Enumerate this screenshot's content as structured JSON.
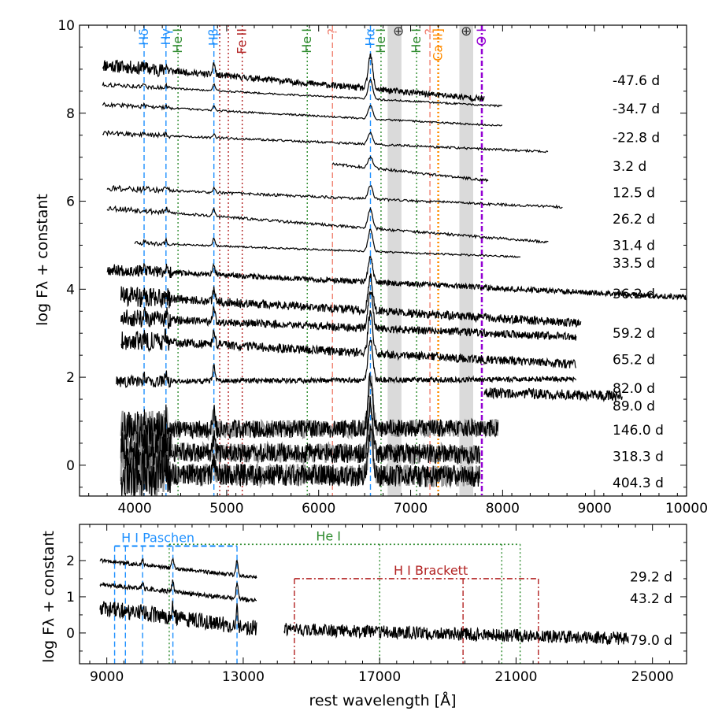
{
  "colors": {
    "halpha": "#1e90ff",
    "hei": "#2e8b2e",
    "feii": "#b22222",
    "unknown": "#f08070",
    "caii": "#ff8c00",
    "oi": "#9400d3",
    "telluric": "#d3d3d3",
    "spectrum": "#000000",
    "error": "#808080"
  },
  "chart_data": [
    {
      "type": "line",
      "title": "",
      "xlabel": "",
      "ylabel": "log Fλ + constant",
      "xlim": [
        3400,
        10000
      ],
      "ylim": [
        -0.7,
        10
      ],
      "xticks": [
        "4000",
        "5000",
        "6000",
        "7000",
        "8000",
        "9000",
        "10000"
      ],
      "yticks": [
        "0",
        "2",
        "4",
        "6",
        "8",
        "10"
      ],
      "xtick_values": [
        4000,
        5000,
        6000,
        7000,
        8000,
        9000,
        10000
      ],
      "ytick_values": [
        0,
        2,
        4,
        6,
        8,
        10
      ],
      "telluric_bands": [
        [
          6750,
          6900
        ],
        [
          7530,
          7680
        ]
      ],
      "telluric_symbols": [
        {
          "x": 6868,
          "label": "⊕"
        },
        {
          "x": 7605,
          "label": "⊕"
        }
      ],
      "line_ids": [
        {
          "label": "Hδ",
          "x": 4102,
          "style": "dashed",
          "color_key": "halpha"
        },
        {
          "label": "Hγ",
          "x": 4340,
          "style": "dashed",
          "color_key": "halpha"
        },
        {
          "label": "He I",
          "x": 4471,
          "style": "dotted",
          "color_key": "hei"
        },
        {
          "label": "Hβ",
          "x": 4861,
          "style": "dashed",
          "color_key": "halpha"
        },
        {
          "label": "",
          "x": 4924,
          "style": "dotted",
          "color_key": "feii"
        },
        {
          "label": "",
          "x": 5018,
          "style": "dotted",
          "color_key": "feii"
        },
        {
          "label": "Fe II",
          "x": 5169,
          "style": "dotted",
          "color_key": "feii"
        },
        {
          "label": "He I",
          "x": 5876,
          "style": "dotted",
          "color_key": "hei"
        },
        {
          "label": "?",
          "x": 6150,
          "style": "dashed",
          "color_key": "unknown"
        },
        {
          "label": "Hα",
          "x": 6563,
          "style": "dashed",
          "color_key": "halpha"
        },
        {
          "label": "He I",
          "x": 6678,
          "style": "dotted",
          "color_key": "hei"
        },
        {
          "label": "He I",
          "x": 7065,
          "style": "dotted",
          "color_key": "hei"
        },
        {
          "label": "?",
          "x": 7210,
          "style": "dashed",
          "color_key": "unknown"
        },
        {
          "label": "Ca II]",
          "x": 7300,
          "style": "dotted",
          "color_key": "caii"
        },
        {
          "label": "O I",
          "x": 7774,
          "style": "dashdot",
          "color_key": "oi"
        }
      ],
      "series": [
        {
          "name": "-47.6 d",
          "offset": 9.1,
          "xmin": 3650,
          "xmax": 7800,
          "slope": -0.75,
          "noise": 0.07,
          "ha": 0.75,
          "err": false
        },
        {
          "name": "-34.7 d",
          "offset": 8.65,
          "xmin": 3650,
          "xmax": 8000,
          "slope": -0.45,
          "noise": 0.02,
          "ha": 0.45,
          "err": false
        },
        {
          "name": "-22.8 d",
          "offset": 8.2,
          "xmin": 3650,
          "xmax": 8000,
          "slope": -0.45,
          "noise": 0.02,
          "ha": 0.3,
          "err": false
        },
        {
          "name": "-22.8 d b",
          "offset": 7.55,
          "xmin": 3650,
          "xmax": 8500,
          "slope": -0.35,
          "noise": 0.025,
          "ha": 0.25,
          "err": false
        },
        {
          "name": "3.2 d",
          "offset": 6.85,
          "xmin": 6150,
          "xmax": 7850,
          "slope": -0.9,
          "noise": 0.03,
          "ha": 0.25,
          "err": false
        },
        {
          "name": "12.5 d",
          "offset": 6.3,
          "xmin": 3700,
          "xmax": 8650,
          "slope": -0.35,
          "noise": 0.03,
          "ha": 0.3,
          "err": false
        },
        {
          "name": "26.2 d",
          "offset": 5.85,
          "xmin": 3700,
          "xmax": 8500,
          "slope": -0.65,
          "noise": 0.03,
          "ha": 0.45,
          "err": false
        },
        {
          "name": "31.4 d",
          "offset": 5.05,
          "xmin": 4000,
          "xmax": 8200,
          "slope": -0.3,
          "noise": 0.02,
          "ha": 0.5,
          "err": false
        },
        {
          "name": "33.5 d",
          "offset": 4.45,
          "xmin": 3700,
          "xmax": 10000,
          "slope": -0.4,
          "noise": 0.06,
          "ha": 0.55,
          "err": false
        },
        {
          "name": "36.2 d",
          "offset": 3.85,
          "xmin": 3850,
          "xmax": 8850,
          "slope": -0.5,
          "noise": 0.1,
          "ha": 0.75,
          "err": false
        },
        {
          "name": "59.2 d",
          "offset": 3.35,
          "xmin": 3850,
          "xmax": 8800,
          "slope": -0.35,
          "noise": 0.09,
          "ha": 0.85,
          "err": false
        },
        {
          "name": "65.2 d",
          "offset": 2.85,
          "xmin": 3850,
          "xmax": 8800,
          "slope": -0.45,
          "noise": 0.1,
          "ha": 0.95,
          "err": false
        },
        {
          "name": "82.0 d",
          "offset": 1.9,
          "xmin": 3800,
          "xmax": 8800,
          "slope": 0.05,
          "noise": 0.06,
          "ha": 0.95,
          "err": false
        },
        {
          "name": "89.0 d",
          "offset": 1.65,
          "xmin": 7800,
          "xmax": 9300,
          "slope": -0.2,
          "noise": 0.12,
          "ha": 0,
          "err": false
        },
        {
          "name": "146.0 d",
          "offset": 0.8,
          "xmin": 3850,
          "xmax": 7950,
          "slope": 0.05,
          "noise": 0.2,
          "ha": 1.15,
          "err": true
        },
        {
          "name": "318.3 d",
          "offset": 0.3,
          "xmin": 3850,
          "xmax": 7750,
          "slope": -0.05,
          "noise": 0.22,
          "ha": 1.1,
          "err": true
        },
        {
          "name": "404.3 d",
          "offset": -0.2,
          "xmin": 3850,
          "xmax": 7750,
          "slope": -0.05,
          "noise": 0.25,
          "ha": 1.0,
          "err": true
        }
      ],
      "epoch_labels": [
        {
          "text": "-47.6 d",
          "y": 8.75
        },
        {
          "text": "-34.7 d",
          "y": 8.1
        },
        {
          "text": "-22.8 d",
          "y": 7.45
        },
        {
          "text": " 3.2 d",
          "y": 6.8
        },
        {
          "text": "12.5 d",
          "y": 6.2
        },
        {
          "text": "26.2 d",
          "y": 5.6
        },
        {
          "text": "31.4 d",
          "y": 5.0
        },
        {
          "text": "33.5 d",
          "y": 4.6
        },
        {
          "text": "36.2 d",
          "y": 3.9
        },
        {
          "text": "59.2 d",
          "y": 3.0
        },
        {
          "text": "65.2 d",
          "y": 2.4
        },
        {
          "text": "82.0 d",
          "y": 1.75
        },
        {
          "text": "89.0 d",
          "y": 1.35
        },
        {
          "text": "146.0 d",
          "y": 0.8
        },
        {
          "text": "318.3 d",
          "y": 0.2
        },
        {
          "text": "404.3 d",
          "y": -0.4
        }
      ]
    },
    {
      "type": "line",
      "title": "",
      "xlabel": "rest wavelength [Å]",
      "ylabel": "log Fλ + constant",
      "xlim": [
        8200,
        26000
      ],
      "ylim": [
        -0.85,
        3.0
      ],
      "xticks": [
        "9000",
        "13000",
        "17000",
        "21000",
        "25000"
      ],
      "yticks": [
        "0",
        "1",
        "2"
      ],
      "xtick_values": [
        9000,
        13000,
        17000,
        21000,
        25000
      ],
      "ytick_values": [
        0,
        1,
        2
      ],
      "brackets": [
        {
          "label": "H I Paschen",
          "color_key": "halpha",
          "style": "dashed",
          "y": 2.4,
          "label_x": 10500,
          "lines": [
            9229,
            9546,
            10049,
            10938,
            12818
          ],
          "drop_to": -0.85
        },
        {
          "label": "He I",
          "color_key": "hei",
          "style": "dotted",
          "y": 2.45,
          "label_x": 15500,
          "lines": [
            10830,
            17002,
            20581,
            21120
          ],
          "drop_to": -0.85
        },
        {
          "label": "H I Brackett",
          "color_key": "feii",
          "style": "dashdot",
          "y": 1.5,
          "label_x": 18500,
          "lines": [
            14500,
            19446,
            21655
          ],
          "drop_to": -0.85
        }
      ],
      "series": [
        {
          "name": "29.2 d",
          "offset": 2.0,
          "xmin": 8800,
          "xmax": 13400,
          "slope": -0.4,
          "noise": 0.05,
          "err": false
        },
        {
          "name": "43.2 d",
          "offset": 1.35,
          "xmin": 8800,
          "xmax": 13400,
          "slope": -0.4,
          "noise": 0.06,
          "err": false
        },
        {
          "name": "79.0 d",
          "offset": 0.7,
          "xmin": 8800,
          "xmax": 13400,
          "slope": -0.5,
          "noise": 0.22,
          "err": false
        },
        {
          "name": "79.0 d ir",
          "offset": 0.1,
          "xmin": 14200,
          "xmax": 24300,
          "slope": -0.1,
          "noise": 0.18,
          "err": false
        }
      ],
      "epoch_labels": [
        {
          "text": "29.2 d",
          "y": 1.55
        },
        {
          "text": "43.2 d",
          "y": 0.95
        },
        {
          "text": "79.0 d",
          "y": -0.2
        }
      ]
    }
  ]
}
